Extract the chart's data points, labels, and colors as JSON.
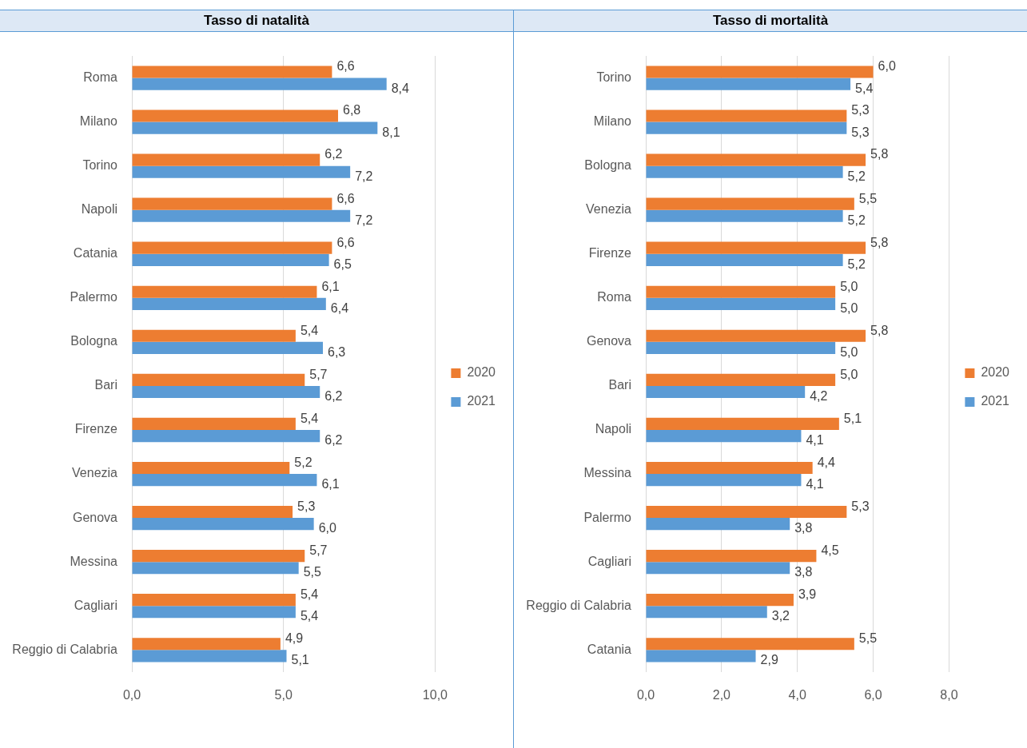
{
  "chart_data": [
    {
      "type": "bar",
      "title": "Tasso di natalità",
      "orientation": "horizontal",
      "categories": [
        "Roma",
        "Milano",
        "Torino",
        "Napoli",
        "Catania",
        "Palermo",
        "Bologna",
        "Bari",
        "Firenze",
        "Venezia",
        "Genova",
        "Messina",
        "Cagliari",
        "Reggio di Calabria"
      ],
      "series": [
        {
          "name": "2020",
          "color": "#ed7d31",
          "values": [
            6.6,
            6.8,
            6.2,
            6.6,
            6.6,
            6.1,
            5.4,
            5.7,
            5.4,
            5.2,
            5.3,
            5.7,
            5.4,
            4.9
          ],
          "value_labels": [
            "6,6",
            "6,8",
            "6,2",
            "6,6",
            "6,6",
            "6,1",
            "5,4",
            "5,7",
            "5,4",
            "5,2",
            "5,3",
            "5,7",
            "5,4",
            "4,9"
          ]
        },
        {
          "name": "2021",
          "color": "#5b9bd5",
          "values": [
            8.4,
            8.1,
            7.2,
            7.2,
            6.5,
            6.4,
            6.3,
            6.2,
            6.2,
            6.1,
            6.0,
            5.5,
            5.4,
            5.1
          ],
          "value_labels": [
            "8,4",
            "8,1",
            "7,2",
            "7,2",
            "6,5",
            "6,4",
            "6,3",
            "6,2",
            "6,2",
            "6,1",
            "6,0",
            "5,5",
            "5,4",
            "5,1"
          ]
        }
      ],
      "xlim": [
        0,
        10
      ],
      "xticks": [
        {
          "value": 0,
          "label": "0,0"
        },
        {
          "value": 5,
          "label": "5,0"
        },
        {
          "value": 10,
          "label": "10,0"
        }
      ],
      "grid": "x",
      "legend": "right"
    },
    {
      "type": "bar",
      "title": "Tasso di mortalità",
      "orientation": "horizontal",
      "categories": [
        "Torino",
        "Milano",
        "Bologna",
        "Venezia",
        "Firenze",
        "Roma",
        "Genova",
        "Bari",
        "Napoli",
        "Messina",
        "Palermo",
        "Cagliari",
        "Reggio di Calabria",
        "Catania"
      ],
      "series": [
        {
          "name": "2020",
          "color": "#ed7d31",
          "values": [
            6.0,
            5.3,
            5.8,
            5.5,
            5.8,
            5.0,
            5.8,
            5.0,
            5.1,
            4.4,
            5.3,
            4.5,
            3.9,
            5.5
          ],
          "value_labels": [
            "6,0",
            "5,3",
            "5,8",
            "5,5",
            "5,8",
            "5,0",
            "5,8",
            "5,0",
            "5,1",
            "4,4",
            "5,3",
            "4,5",
            "3,9",
            "5,5"
          ]
        },
        {
          "name": "2021",
          "color": "#5b9bd5",
          "values": [
            5.4,
            5.3,
            5.2,
            5.2,
            5.2,
            5.0,
            5.0,
            4.2,
            4.1,
            4.1,
            3.8,
            3.8,
            3.2,
            2.9
          ],
          "value_labels": [
            "5,4",
            "5,3",
            "5,2",
            "5,2",
            "5,2",
            "5,0",
            "5,0",
            "4,2",
            "4,1",
            "4,1",
            "3,8",
            "3,8",
            "3,2",
            "2,9"
          ]
        }
      ],
      "xlim": [
        0,
        8
      ],
      "xticks": [
        {
          "value": 0,
          "label": "0,0"
        },
        {
          "value": 2,
          "label": "2,0"
        },
        {
          "value": 4,
          "label": "4,0"
        },
        {
          "value": 6,
          "label": "6,0"
        },
        {
          "value": 8,
          "label": "8,0"
        }
      ],
      "grid": "x",
      "legend": "right"
    }
  ]
}
